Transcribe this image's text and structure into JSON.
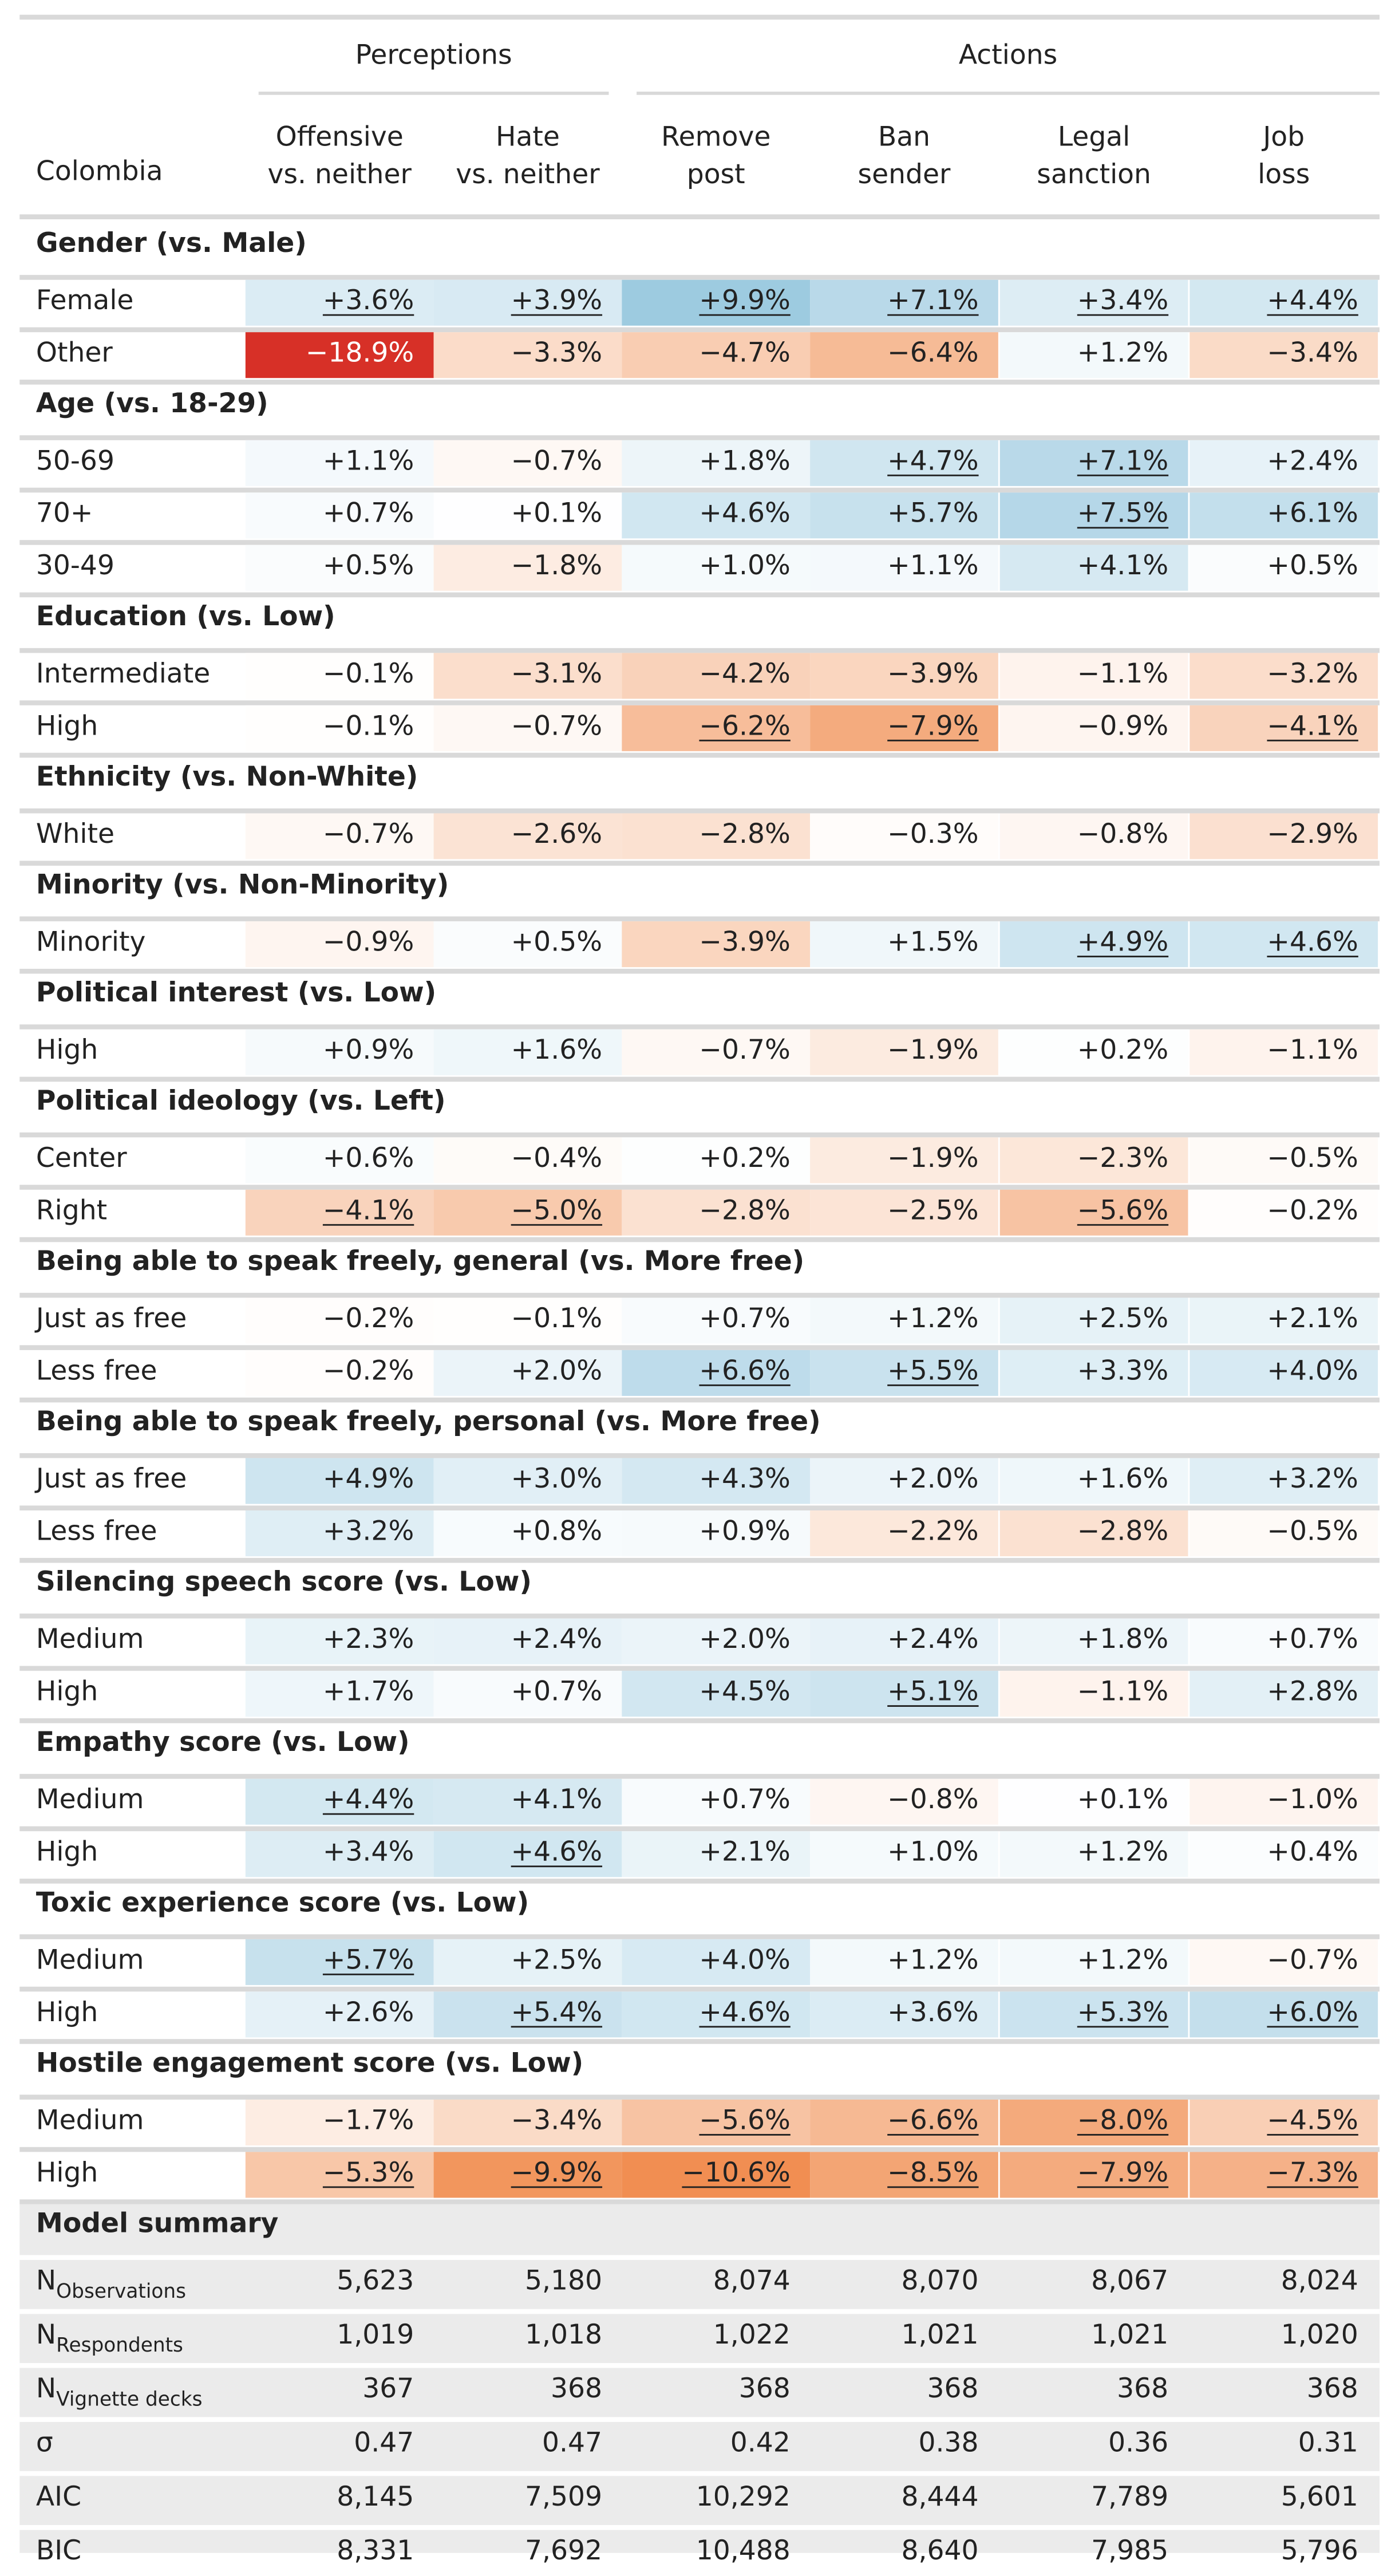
{
  "country": "Colombia",
  "groups": {
    "perceptions": "Perceptions",
    "actions": "Actions"
  },
  "columns": [
    "Offensive\nvs. neither",
    "Hate\nvs. neither",
    "Remove\npost",
    "Ban\nsender",
    "Legal\nsanction",
    "Job\nloss"
  ],
  "colors": {
    "positive_max": "#9ccae0",
    "negative_max": "#f08a4b",
    "extreme_negative": "#d73027",
    "rule": "#d9d9d9",
    "summary_bg": "#ebebeb"
  },
  "chart_data": {
    "type": "table",
    "units": "percentage-point difference vs. reference category",
    "note_underline": "underlined values are statistically significant",
    "sections": [
      {
        "title": "Gender (vs. Male)",
        "rows": [
          {
            "label": "Female",
            "values": [
              "+3.6%",
              "+3.9%",
              "+9.9%",
              "+7.1%",
              "+3.4%",
              "+4.4%"
            ],
            "sig": [
              1,
              1,
              1,
              1,
              1,
              1
            ]
          },
          {
            "label": "Other",
            "values": [
              "−18.9%",
              "−3.3%",
              "−4.7%",
              "−6.4%",
              "+1.2%",
              "−3.4%"
            ],
            "sig": [
              0,
              0,
              0,
              0,
              0,
              0
            ]
          }
        ]
      },
      {
        "title": "Age (vs. 18-29)",
        "rows": [
          {
            "label": "50-69",
            "values": [
              "+1.1%",
              "−0.7%",
              "+1.8%",
              "+4.7%",
              "+7.1%",
              "+2.4%"
            ],
            "sig": [
              0,
              0,
              0,
              1,
              1,
              0
            ]
          },
          {
            "label": "70+",
            "values": [
              "+0.7%",
              "+0.1%",
              "+4.6%",
              "+5.7%",
              "+7.5%",
              "+6.1%"
            ],
            "sig": [
              0,
              0,
              0,
              0,
              1,
              0
            ]
          },
          {
            "label": "30-49",
            "values": [
              "+0.5%",
              "−1.8%",
              "+1.0%",
              "+1.1%",
              "+4.1%",
              "+0.5%"
            ],
            "sig": [
              0,
              0,
              0,
              0,
              0,
              0
            ]
          }
        ]
      },
      {
        "title": "Education (vs. Low)",
        "rows": [
          {
            "label": "Intermediate",
            "values": [
              "−0.1%",
              "−3.1%",
              "−4.2%",
              "−3.9%",
              "−1.1%",
              "−3.2%"
            ],
            "sig": [
              0,
              0,
              0,
              0,
              0,
              0
            ]
          },
          {
            "label": "High",
            "values": [
              "−0.1%",
              "−0.7%",
              "−6.2%",
              "−7.9%",
              "−0.9%",
              "−4.1%"
            ],
            "sig": [
              0,
              0,
              1,
              1,
              0,
              1
            ]
          }
        ]
      },
      {
        "title": "Ethnicity (vs. Non-White)",
        "rows": [
          {
            "label": "White",
            "values": [
              "−0.7%",
              "−2.6%",
              "−2.8%",
              "−0.3%",
              "−0.8%",
              "−2.9%"
            ],
            "sig": [
              0,
              0,
              0,
              0,
              0,
              0
            ]
          }
        ]
      },
      {
        "title": "Minority (vs. Non-Minority)",
        "rows": [
          {
            "label": "Minority",
            "values": [
              "−0.9%",
              "+0.5%",
              "−3.9%",
              "+1.5%",
              "+4.9%",
              "+4.6%"
            ],
            "sig": [
              0,
              0,
              0,
              0,
              1,
              1
            ]
          }
        ]
      },
      {
        "title": "Political interest (vs. Low)",
        "rows": [
          {
            "label": "High",
            "values": [
              "+0.9%",
              "+1.6%",
              "−0.7%",
              "−1.9%",
              "+0.2%",
              "−1.1%"
            ],
            "sig": [
              0,
              0,
              0,
              0,
              0,
              0
            ]
          }
        ]
      },
      {
        "title": "Political ideology (vs. Left)",
        "rows": [
          {
            "label": "Center",
            "values": [
              "+0.6%",
              "−0.4%",
              "+0.2%",
              "−1.9%",
              "−2.3%",
              "−0.5%"
            ],
            "sig": [
              0,
              0,
              0,
              0,
              0,
              0
            ]
          },
          {
            "label": "Right",
            "values": [
              "−4.1%",
              "−5.0%",
              "−2.8%",
              "−2.5%",
              "−5.6%",
              "−0.2%"
            ],
            "sig": [
              1,
              1,
              0,
              0,
              1,
              0
            ]
          }
        ]
      },
      {
        "title": "Being able to speak freely, general (vs. More free)",
        "rows": [
          {
            "label": "Just as free",
            "values": [
              "−0.2%",
              "−0.1%",
              "+0.7%",
              "+1.2%",
              "+2.5%",
              "+2.1%"
            ],
            "sig": [
              0,
              0,
              0,
              0,
              0,
              0
            ]
          },
          {
            "label": "Less free",
            "values": [
              "−0.2%",
              "+2.0%",
              "+6.6%",
              "+5.5%",
              "+3.3%",
              "+4.0%"
            ],
            "sig": [
              0,
              0,
              1,
              1,
              0,
              0
            ]
          }
        ]
      },
      {
        "title": "Being able to speak freely, personal (vs. More free)",
        "rows": [
          {
            "label": "Just as free",
            "values": [
              "+4.9%",
              "+3.0%",
              "+4.3%",
              "+2.0%",
              "+1.6%",
              "+3.2%"
            ],
            "sig": [
              0,
              0,
              0,
              0,
              0,
              0
            ]
          },
          {
            "label": "Less free",
            "values": [
              "+3.2%",
              "+0.8%",
              "+0.9%",
              "−2.2%",
              "−2.8%",
              "−0.5%"
            ],
            "sig": [
              0,
              0,
              0,
              0,
              0,
              0
            ]
          }
        ]
      },
      {
        "title": "Silencing speech score (vs. Low)",
        "rows": [
          {
            "label": "Medium",
            "values": [
              "+2.3%",
              "+2.4%",
              "+2.0%",
              "+2.4%",
              "+1.8%",
              "+0.7%"
            ],
            "sig": [
              0,
              0,
              0,
              0,
              0,
              0
            ]
          },
          {
            "label": "High",
            "values": [
              "+1.7%",
              "+0.7%",
              "+4.5%",
              "+5.1%",
              "−1.1%",
              "+2.8%"
            ],
            "sig": [
              0,
              0,
              0,
              1,
              0,
              0
            ]
          }
        ]
      },
      {
        "title": "Empathy score (vs. Low)",
        "rows": [
          {
            "label": "Medium",
            "values": [
              "+4.4%",
              "+4.1%",
              "+0.7%",
              "−0.8%",
              "+0.1%",
              "−1.0%"
            ],
            "sig": [
              1,
              0,
              0,
              0,
              0,
              0
            ]
          },
          {
            "label": "High",
            "values": [
              "+3.4%",
              "+4.6%",
              "+2.1%",
              "+1.0%",
              "+1.2%",
              "+0.4%"
            ],
            "sig": [
              0,
              1,
              0,
              0,
              0,
              0
            ]
          }
        ]
      },
      {
        "title": "Toxic experience score (vs. Low)",
        "rows": [
          {
            "label": "Medium",
            "values": [
              "+5.7%",
              "+2.5%",
              "+4.0%",
              "+1.2%",
              "+1.2%",
              "−0.7%"
            ],
            "sig": [
              1,
              0,
              0,
              0,
              0,
              0
            ]
          },
          {
            "label": "High",
            "values": [
              "+2.6%",
              "+5.4%",
              "+4.6%",
              "+3.6%",
              "+5.3%",
              "+6.0%"
            ],
            "sig": [
              0,
              1,
              1,
              0,
              1,
              1
            ]
          }
        ]
      },
      {
        "title": "Hostile engagement score (vs. Low)",
        "rows": [
          {
            "label": "Medium",
            "values": [
              "−1.7%",
              "−3.4%",
              "−5.6%",
              "−6.6%",
              "−8.0%",
              "−4.5%"
            ],
            "sig": [
              0,
              0,
              1,
              1,
              1,
              1
            ]
          },
          {
            "label": "High",
            "values": [
              "−5.3%",
              "−9.9%",
              "−10.6%",
              "−8.5%",
              "−7.9%",
              "−7.3%"
            ],
            "sig": [
              1,
              1,
              1,
              1,
              1,
              1
            ]
          }
        ]
      }
    ],
    "model_summary": {
      "title": "Model summary",
      "rows": [
        {
          "label": "N",
          "sub": "Observations",
          "values": [
            "5,623",
            "5,180",
            "8,074",
            "8,070",
            "8,067",
            "8,024"
          ]
        },
        {
          "label": "N",
          "sub": "Respondents",
          "values": [
            "1,019",
            "1,018",
            "1,022",
            "1,021",
            "1,021",
            "1,020"
          ]
        },
        {
          "label": "N",
          "sub": "Vignette decks",
          "values": [
            "367",
            "368",
            "368",
            "368",
            "368",
            "368"
          ]
        },
        {
          "label": "σ",
          "sub": "",
          "values": [
            "0.47",
            "0.47",
            "0.42",
            "0.38",
            "0.36",
            "0.31"
          ]
        },
        {
          "label": "AIC",
          "sub": "",
          "values": [
            "8,145",
            "7,509",
            "10,292",
            "8,444",
            "7,789",
            "5,601"
          ]
        },
        {
          "label": "BIC",
          "sub": "",
          "values": [
            "8,331",
            "7,692",
            "10,488",
            "8,640",
            "7,985",
            "5,796"
          ]
        }
      ]
    }
  }
}
